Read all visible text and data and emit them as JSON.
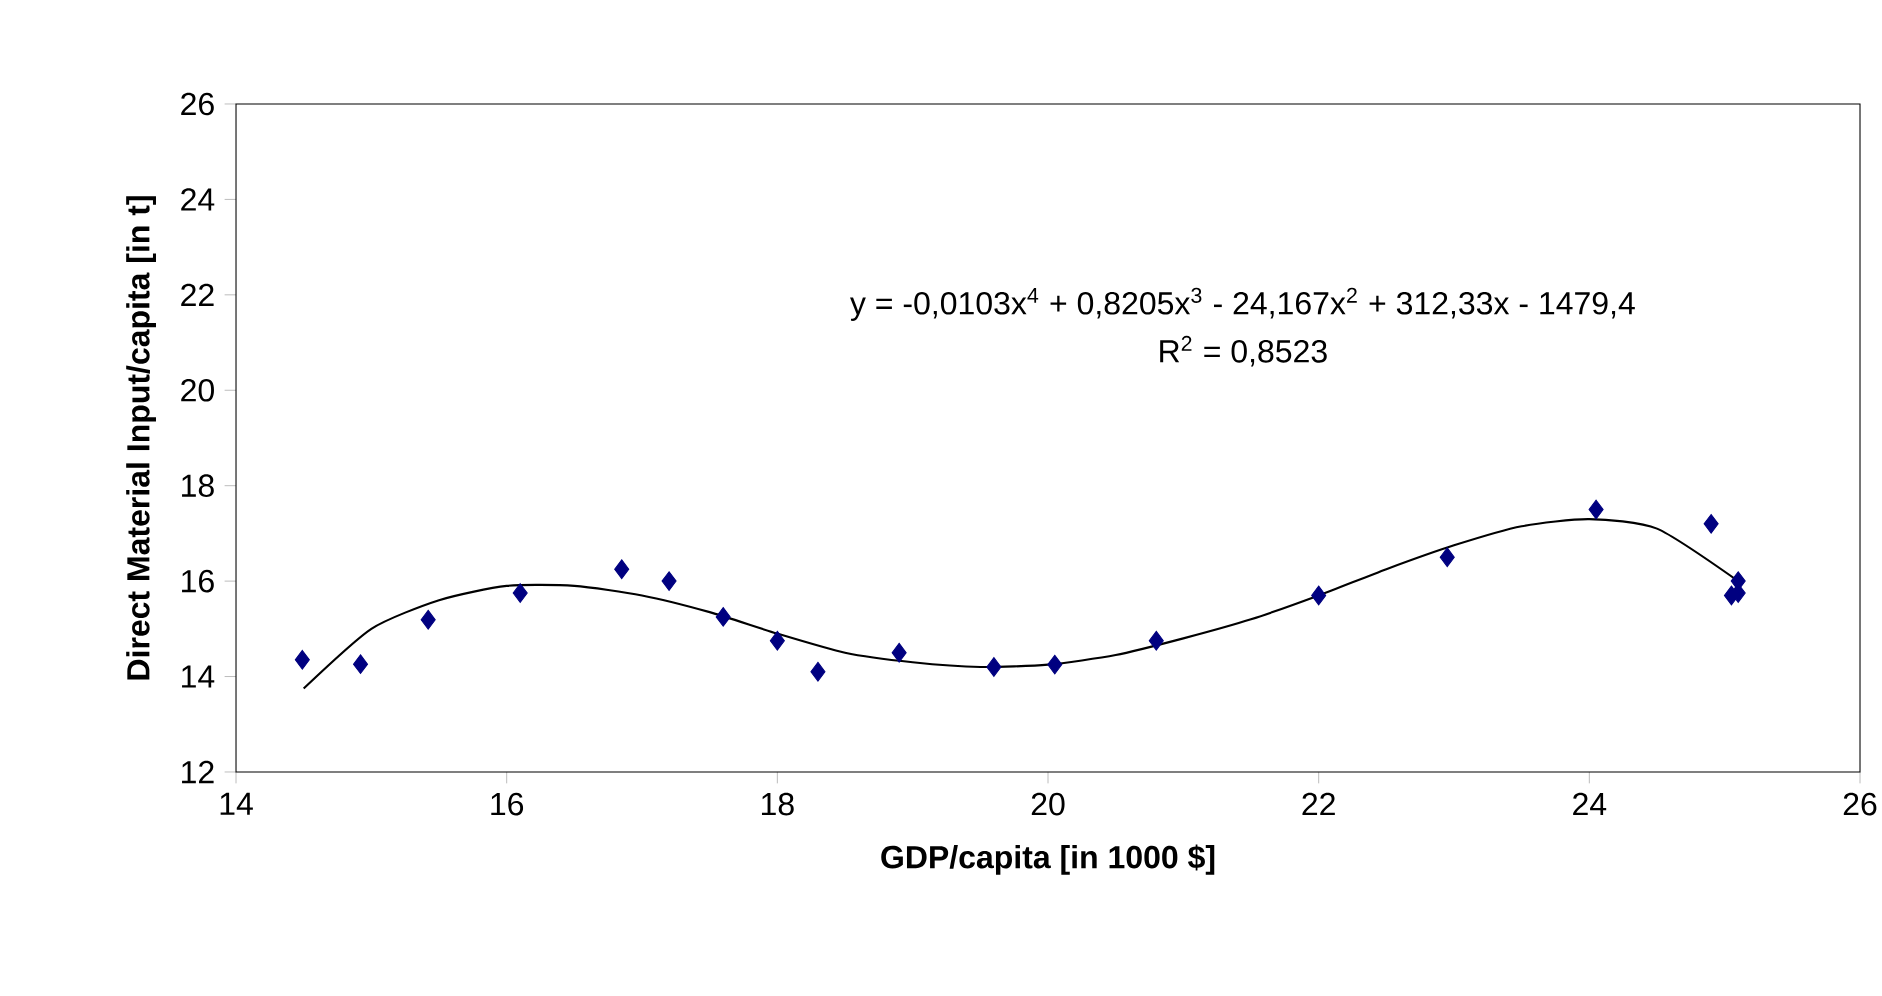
{
  "chart_data": {
    "type": "scatter",
    "xlabel": "GDP/capita [in 1000 $]",
    "ylabel": "Direct Material Input/capita [in t]",
    "xlim": [
      14,
      26
    ],
    "xticks": [
      14,
      16,
      18,
      20,
      22,
      24,
      26
    ],
    "ylim": [
      12,
      26
    ],
    "yticks": [
      12,
      14,
      16,
      18,
      20,
      22,
      24,
      26
    ],
    "grid": false,
    "marker": "diamond",
    "annotations": [
      "y = -0,0103x$^{4}$ + 0,8205x$^{3}$ - 24,167x$^{2}$ + 312,33x - 1479,4",
      "R$^{2}$ = 0,8523"
    ],
    "series": [
      {
        "color": "#000080",
        "x": [
          14.49,
          14.92,
          15.42,
          16.1,
          16.85,
          17.2,
          17.6,
          18.0,
          18.3,
          18.9,
          19.6,
          20.05,
          20.8,
          22.0,
          22.95,
          24.05,
          24.9,
          25.05,
          25.1,
          25.1
        ],
        "values": [
          14.35,
          14.26,
          15.19,
          15.75,
          16.25,
          16.0,
          15.25,
          14.75,
          14.1,
          14.5,
          14.2,
          14.25,
          14.75,
          15.7,
          16.5,
          17.5,
          17.2,
          15.7,
          16.0,
          15.75
        ]
      },
      {
        "type": "line",
        "color": "#000000",
        "marker": "none",
        "line_style": "solid",
        "x": [
          14.5,
          15.0,
          15.5,
          16.0,
          16.5,
          17.0,
          17.5,
          18.0,
          18.5,
          19.0,
          19.5,
          20.0,
          20.5,
          21.0,
          21.5,
          22.0,
          22.5,
          23.0,
          23.5,
          24.0,
          24.5,
          25.1
        ],
        "values": [
          13.75,
          15.0,
          15.6,
          15.9,
          15.9,
          15.7,
          15.35,
          14.9,
          14.5,
          14.3,
          14.2,
          14.25,
          14.45,
          14.8,
          15.2,
          15.7,
          16.25,
          16.75,
          17.15,
          17.3,
          17.1,
          16.0
        ]
      }
    ]
  }
}
